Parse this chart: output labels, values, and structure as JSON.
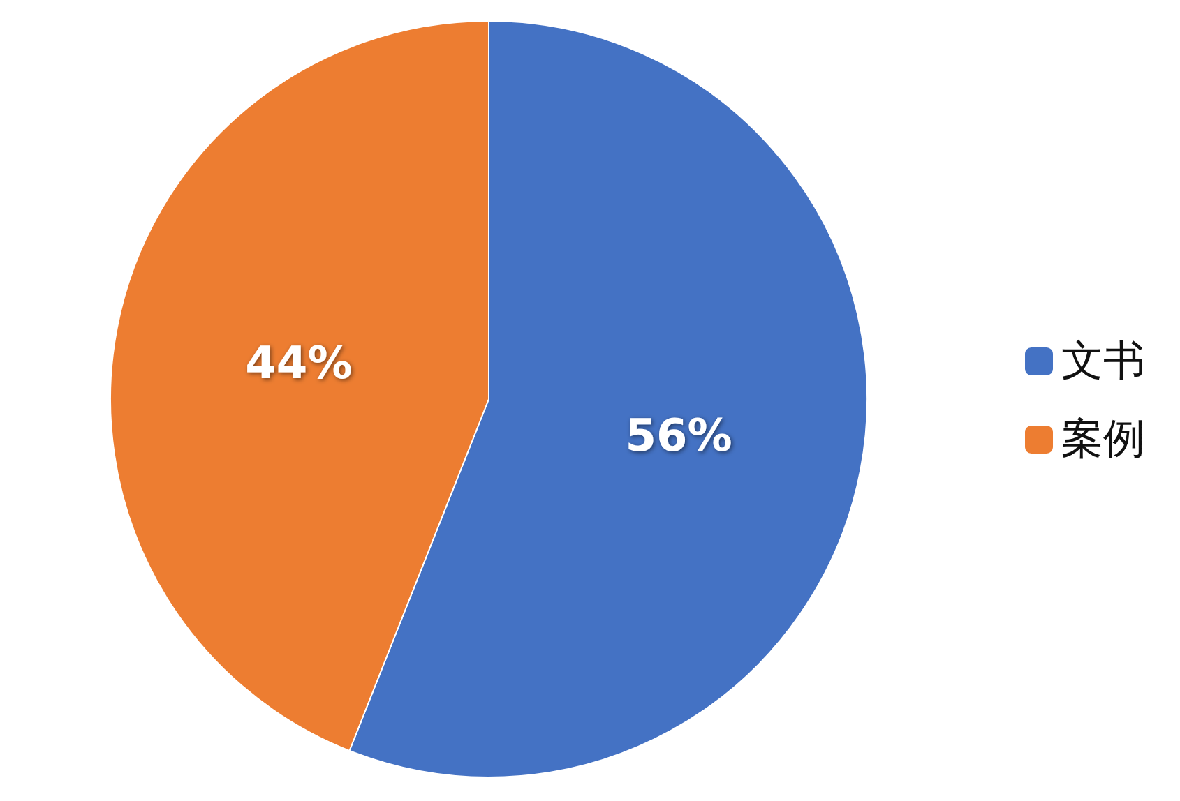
{
  "chart_data": {
    "type": "pie",
    "categories": [
      "文书",
      "案例"
    ],
    "values": [
      56,
      44
    ],
    "colors": [
      "#4472c4",
      "#ed7d31"
    ],
    "value_labels": [
      "56%",
      "44%"
    ],
    "legend": "right"
  }
}
